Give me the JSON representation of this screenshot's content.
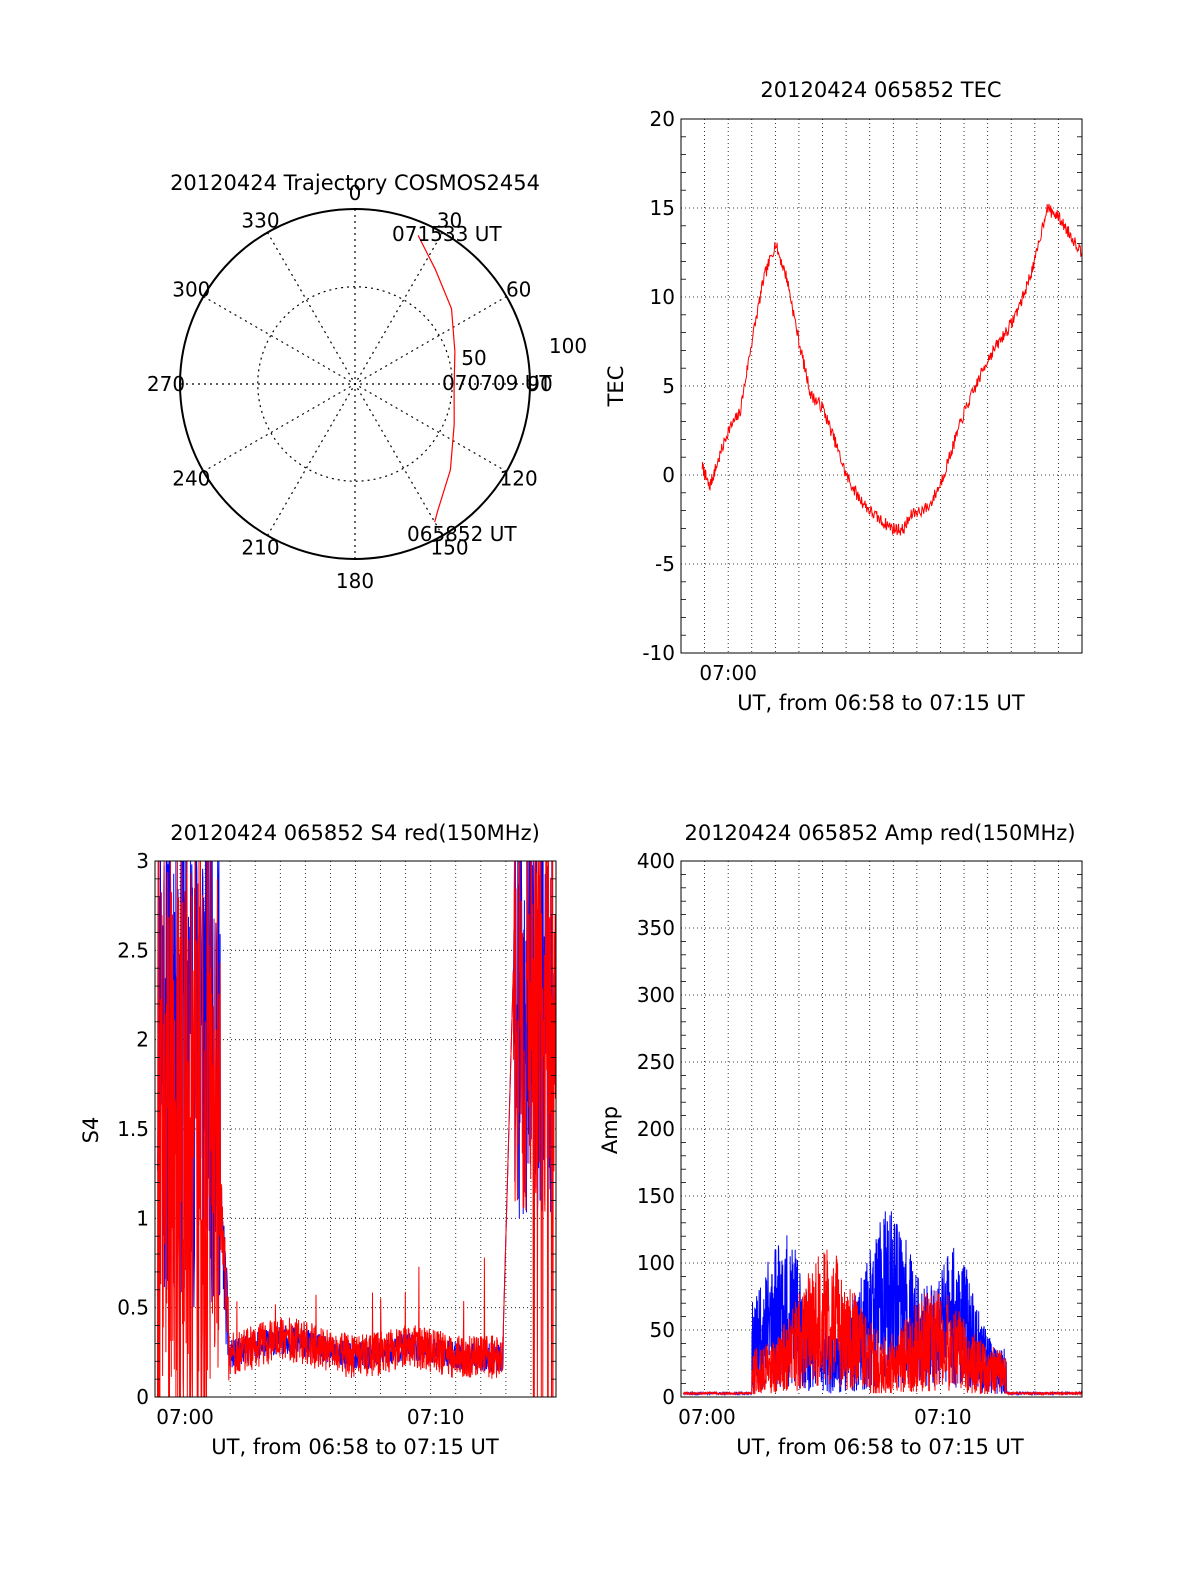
{
  "charts": {
    "polar": {
      "type": "polar-trajectory",
      "title": "20120424 Trajectory COSMOS2454",
      "azimuth_labels": [
        "0",
        "30",
        "60",
        "90",
        "120",
        "150",
        "180",
        "210",
        "240",
        "270",
        "300",
        "330"
      ],
      "ring_labels": [
        "50",
        "100"
      ],
      "trajectory_color": "#ff0000",
      "trajectory": [
        {
          "az": 23,
          "zen": 83
        },
        {
          "az": 35,
          "zen": 72
        },
        {
          "az": 52,
          "zen": 63
        },
        {
          "az": 72,
          "zen": 54
        },
        {
          "az": 92,
          "zen": 51
        },
        {
          "az": 112,
          "zen": 55
        },
        {
          "az": 132,
          "zen": 66
        },
        {
          "az": 147,
          "zen": 78
        },
        {
          "az": 150,
          "zen": 82
        }
      ],
      "annotations": [
        {
          "text": "071533 UT",
          "az": 23,
          "zen": 83
        },
        {
          "text": "070709 UT",
          "az": 92,
          "zen": 51
        },
        {
          "text": "065852 UT",
          "az": 150,
          "zen": 82
        }
      ]
    },
    "tec": {
      "type": "line",
      "title": "20120424 065852 TEC",
      "xlabel": "UT, from 06:58 to 07:15 UT",
      "ylabel": "TEC",
      "xlim": [
        0,
        17
      ],
      "ylim": [
        -10,
        20
      ],
      "yticks": [
        "20",
        "15",
        "10",
        "5",
        "0",
        "-5",
        "-10"
      ],
      "xticks": [
        {
          "label": "07:00",
          "at": 2
        }
      ],
      "grid": true,
      "series": [
        {
          "color": "#ff0000",
          "x": [
            0.9,
            1.2,
            1.5,
            2.0,
            2.5,
            3.0,
            3.5,
            4.0,
            4.5,
            5.0,
            5.5,
            6.0,
            6.5,
            7.0,
            7.5,
            8.0,
            8.5,
            9.0,
            9.4,
            9.8,
            10.5,
            11.0,
            11.5,
            12.0,
            12.5,
            13.0,
            13.5,
            14.0,
            14.5,
            15.0,
            15.5,
            16.0,
            16.5,
            17.0
          ],
          "y": [
            0.5,
            -0.7,
            0.5,
            2.5,
            3.5,
            7.5,
            11.0,
            13.0,
            11.0,
            7.5,
            4.5,
            3.8,
            2.0,
            0.0,
            -1.2,
            -2.0,
            -2.6,
            -3.0,
            -3.1,
            -2.2,
            -1.8,
            -0.5,
            1.5,
            3.5,
            5.0,
            6.5,
            7.5,
            8.5,
            10.0,
            12.0,
            15.0,
            14.5,
            13.5,
            12.5
          ]
        }
      ]
    },
    "s4": {
      "type": "line",
      "title": "20120424 065852 S4 red(150MHz)",
      "xlabel": "UT, from 06:58 to 07:15 UT",
      "ylabel": "S4",
      "xlim": [
        0,
        16
      ],
      "ylim": [
        0,
        3
      ],
      "yticks": [
        "3",
        "2.5",
        "2",
        "1.5",
        "1",
        "0.5",
        "0"
      ],
      "xticks": [
        {
          "label": "07:00",
          "at": 1.2
        },
        {
          "label": "07:10",
          "at": 11.2
        }
      ],
      "grid": true,
      "noise_seed": 11
    },
    "amp": {
      "type": "line",
      "title": "20120424 065852 Amp red(150MHz)",
      "xlabel": "UT, from 06:58 to 07:15 UT",
      "ylabel": "Amp",
      "xlim": [
        0,
        17
      ],
      "ylim": [
        0,
        400
      ],
      "yticks": [
        "400",
        "350",
        "300",
        "250",
        "200",
        "150",
        "100",
        "50",
        "0"
      ],
      "xticks": [
        {
          "label": "07:00",
          "at": 1.1
        },
        {
          "label": "07:10",
          "at": 11.1
        }
      ],
      "grid": true,
      "noise_seed": 23
    }
  }
}
